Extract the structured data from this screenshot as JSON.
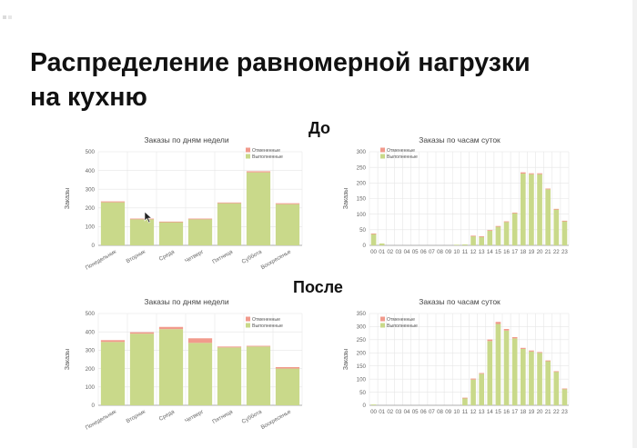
{
  "slide": {
    "title_line1": "Распределение равномерной нагрузки",
    "title_line2": "на кухню",
    "label_before": "До",
    "label_after": "После"
  },
  "colors": {
    "completed": "#c9d98a",
    "cancelled": "#f19a8c",
    "grid": "#e6e6e6",
    "axis_text": "#666666"
  },
  "chart_data": [
    {
      "type": "bar",
      "stacked": true,
      "title": "Заказы по дням недели",
      "ylabel": "Заказы",
      "ylim": [
        0,
        500
      ],
      "yticks": [
        0,
        100,
        200,
        300,
        400,
        500
      ],
      "grid": true,
      "legend_position": "top-right",
      "tick_rotation": -30,
      "categories": [
        "Понедельник",
        "Вторник",
        "Среда",
        "Четверг",
        "Пятница",
        "Суббота",
        "Воскресенье"
      ],
      "series": [
        {
          "name": "Выполненные",
          "values": [
            230,
            140,
            125,
            140,
            225,
            390,
            220
          ]
        },
        {
          "name": "Отмененные",
          "values": [
            5,
            3,
            2,
            3,
            4,
            6,
            5
          ]
        }
      ]
    },
    {
      "type": "bar",
      "stacked": true,
      "title": "Заказы по часам суток",
      "ylabel": "Заказы",
      "ylim": [
        0,
        300
      ],
      "yticks": [
        0,
        50,
        100,
        150,
        200,
        250,
        300
      ],
      "grid": true,
      "legend_position": "top-left",
      "tick_rotation": 0,
      "categories": [
        "00",
        "01",
        "02",
        "03",
        "04",
        "05",
        "06",
        "07",
        "08",
        "09",
        "10",
        "11",
        "12",
        "13",
        "14",
        "15",
        "16",
        "17",
        "18",
        "19",
        "20",
        "21",
        "22",
        "23"
      ],
      "series": [
        {
          "name": "Выполненные",
          "values": [
            37,
            6,
            0,
            0,
            0,
            0,
            0,
            0,
            0,
            0,
            2,
            3,
            30,
            28,
            48,
            60,
            75,
            103,
            230,
            228,
            228,
            180,
            115,
            78
          ]
        },
        {
          "name": "Отмененные",
          "values": [
            1,
            0,
            0,
            0,
            0,
            0,
            0,
            0,
            0,
            0,
            0,
            0,
            1,
            1,
            1,
            2,
            2,
            2,
            4,
            3,
            3,
            2,
            2,
            1
          ]
        }
      ]
    },
    {
      "type": "bar",
      "stacked": true,
      "title": "Заказы по дням недели",
      "ylabel": "Заказы",
      "ylim": [
        0,
        500
      ],
      "yticks": [
        0,
        100,
        200,
        300,
        400,
        500
      ],
      "grid": true,
      "legend_position": "top-right",
      "tick_rotation": -30,
      "categories": [
        "Понедельник",
        "Вторник",
        "Среда",
        "Четверг",
        "Пятница",
        "Суббота",
        "Воскресенье"
      ],
      "series": [
        {
          "name": "Выполненные",
          "values": [
            345,
            390,
            415,
            340,
            315,
            320,
            200
          ]
        },
        {
          "name": "Отмененные",
          "values": [
            10,
            8,
            12,
            25,
            5,
            4,
            8
          ]
        }
      ]
    },
    {
      "type": "bar",
      "stacked": true,
      "title": "Заказы по часам суток",
      "ylabel": "Заказы",
      "ylim": [
        0,
        350
      ],
      "yticks": [
        0,
        50,
        100,
        150,
        200,
        250,
        300,
        350
      ],
      "grid": true,
      "legend_position": "top-left",
      "tick_rotation": 0,
      "categories": [
        "00",
        "01",
        "02",
        "03",
        "04",
        "05",
        "06",
        "07",
        "08",
        "09",
        "10",
        "11",
        "12",
        "13",
        "14",
        "15",
        "16",
        "17",
        "18",
        "19",
        "20",
        "21",
        "22",
        "23"
      ],
      "series": [
        {
          "name": "Выполненные",
          "values": [
            3,
            0,
            0,
            0,
            0,
            0,
            0,
            0,
            0,
            0,
            0,
            28,
            98,
            120,
            245,
            310,
            285,
            255,
            215,
            205,
            200,
            168,
            128,
            62
          ]
        },
        {
          "name": "Отмененные",
          "values": [
            0,
            0,
            0,
            0,
            0,
            0,
            0,
            0,
            0,
            0,
            0,
            1,
            4,
            3,
            6,
            8,
            6,
            5,
            4,
            4,
            3,
            3,
            2,
            2
          ]
        }
      ]
    }
  ]
}
